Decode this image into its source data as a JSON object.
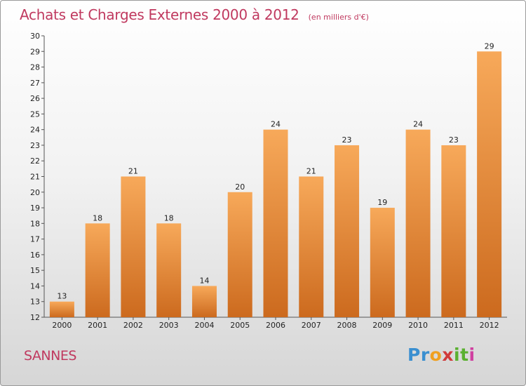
{
  "title": "Achats et Charges Externes 2000 à 2012",
  "unit": "(en milliers d'€)",
  "city": "SANNES",
  "logo": {
    "text": "Proxiti",
    "letters": [
      "P",
      "r",
      "o",
      "x",
      "i",
      "t",
      "i"
    ],
    "colors": [
      "#3a8fd0",
      "#3a8fd0",
      "#f0a020",
      "#d03a3a",
      "#5ab030",
      "#5ab030",
      "#d040a0"
    ]
  },
  "colors": {
    "bar_top": "#f7a95a",
    "bar_bottom": "#cc6a1e",
    "title": "#c0395f"
  },
  "chart_data": {
    "type": "bar",
    "categories": [
      "2000",
      "2001",
      "2002",
      "2003",
      "2004",
      "2005",
      "2006",
      "2007",
      "2008",
      "2009",
      "2010",
      "2011",
      "2012"
    ],
    "values": [
      13,
      18,
      21,
      18,
      14,
      20,
      24,
      21,
      23,
      19,
      24,
      23,
      29
    ],
    "title": "Achats et Charges Externes 2000 à 2012",
    "xlabel": "",
    "ylabel": "",
    "ylim": [
      12,
      30
    ],
    "yticks": [
      12,
      13,
      14,
      15,
      16,
      17,
      18,
      19,
      20,
      21,
      22,
      23,
      24,
      25,
      26,
      27,
      28,
      29,
      30
    ],
    "grid": false
  }
}
